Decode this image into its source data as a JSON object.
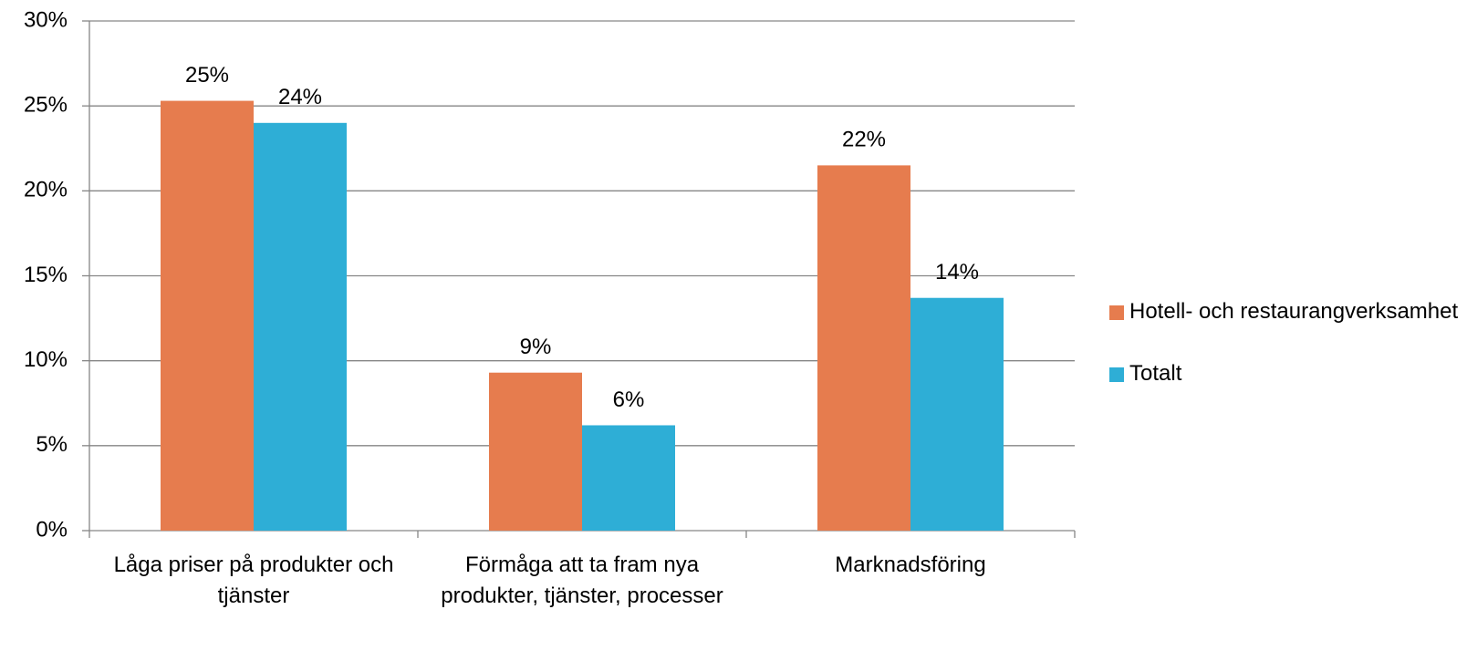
{
  "chart_data": {
    "type": "bar",
    "categories": [
      "Låga priser på produkter och tjänster",
      "Förmåga att ta fram nya produkter, tjänster, processer",
      "Marknadsföring"
    ],
    "series": [
      {
        "name": "Hotell- och restaurangverksamhet",
        "color": "#e67c4e",
        "values": [
          25.3,
          9.3,
          21.5
        ],
        "value_labels": [
          "25%",
          "9%",
          "22%"
        ]
      },
      {
        "name": "Totalt",
        "color": "#2eaed6",
        "values": [
          24.0,
          6.2,
          13.7
        ],
        "value_labels": [
          "24%",
          "6%",
          "14%"
        ]
      }
    ],
    "ylim": [
      0,
      30
    ],
    "yticks": [
      {
        "value": 0,
        "label": "0%"
      },
      {
        "value": 5,
        "label": "5%"
      },
      {
        "value": 10,
        "label": "10%"
      },
      {
        "value": 15,
        "label": "15%"
      },
      {
        "value": 20,
        "label": "20%"
      },
      {
        "value": 25,
        "label": "25%"
      },
      {
        "value": 30,
        "label": "30%"
      }
    ],
    "grid": true,
    "legend": "right"
  }
}
